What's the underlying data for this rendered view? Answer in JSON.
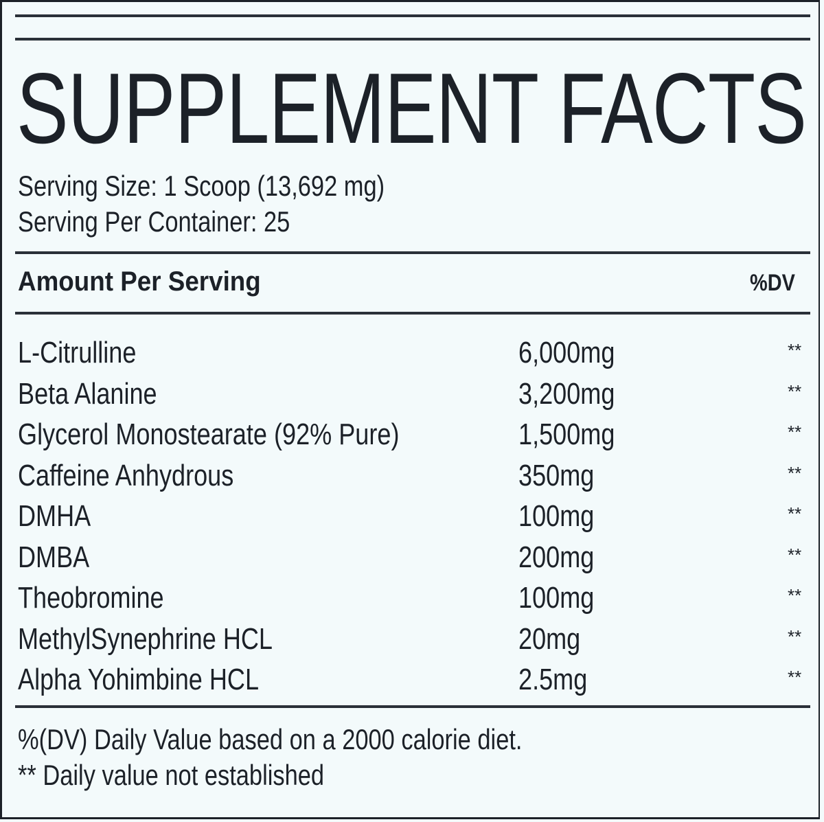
{
  "title": "SUPPLEMENT FACTS",
  "serving_size": "Serving Size: 1 Scoop (13,692 mg)",
  "servings_per_container": "Serving Per Container: 25",
  "header": {
    "amount_label": "Amount Per Serving",
    "dv_label": "%DV"
  },
  "ingredients": [
    {
      "name": "L-Citrulline",
      "amount": "6,000mg",
      "dv": "**"
    },
    {
      "name": "Beta Alanine",
      "amount": "3,200mg",
      "dv": "**"
    },
    {
      "name": "Glycerol Monostearate (92% Pure)",
      "amount": "1,500mg",
      "dv": "**"
    },
    {
      "name": "Caffeine Anhydrous",
      "amount": "350mg",
      "dv": "**"
    },
    {
      "name": "DMHA",
      "amount": "100mg",
      "dv": "**"
    },
    {
      "name": "DMBA",
      "amount": "200mg",
      "dv": "**"
    },
    {
      "name": "Theobromine",
      "amount": "100mg",
      "dv": "**"
    },
    {
      "name": "MethylSynephrine HCL",
      "amount": "20mg",
      "dv": "**"
    },
    {
      "name": "Alpha Yohimbine HCL",
      "amount": "2.5mg",
      "dv": "**"
    }
  ],
  "footnotes": [
    "%(DV) Daily Value based on a 2000 calorie diet.",
    "** Daily value not established"
  ]
}
